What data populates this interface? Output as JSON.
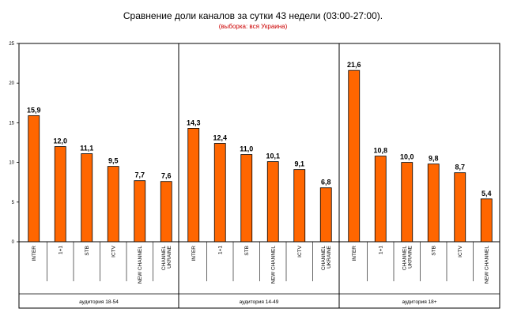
{
  "chart_data": {
    "type": "bar",
    "title": "Сравнение доли каналов за сутки 43 недели (03:00-27:00).",
    "subtitle": "(выборка: вся Украина)",
    "ylim": [
      0,
      25
    ],
    "yticks": [
      0,
      5,
      10,
      15,
      20,
      25
    ],
    "grid": false,
    "bar_color": "#ff6600",
    "groups": [
      {
        "name": "аудитория 18-54",
        "categories": [
          [
            "INTER"
          ],
          [
            "1+1"
          ],
          [
            "STB"
          ],
          [
            "ICTV"
          ],
          [
            "NEW CHANNEL"
          ],
          [
            "CHANNEL",
            "UKRAINE"
          ]
        ],
        "values": [
          15.9,
          12.0,
          11.1,
          9.5,
          7.7,
          7.6
        ],
        "value_labels": [
          "15,9",
          "12,0",
          "11,1",
          "9,5",
          "7,7",
          "7,6"
        ]
      },
      {
        "name": "аудитория 14-49",
        "categories": [
          [
            "INTER"
          ],
          [
            "1+1"
          ],
          [
            "STB"
          ],
          [
            "NEW CHANNEL"
          ],
          [
            "ICTV"
          ],
          [
            "CHANNEL",
            "UKRAINE"
          ]
        ],
        "values": [
          14.3,
          12.4,
          11.0,
          10.1,
          9.1,
          6.8
        ],
        "value_labels": [
          "14,3",
          "12,4",
          "11,0",
          "10,1",
          "9,1",
          "6,8"
        ]
      },
      {
        "name": "аудитория 18+",
        "categories": [
          [
            "INTER"
          ],
          [
            "1+1"
          ],
          [
            "CHANNEL",
            "UKRAINE"
          ],
          [
            "STB"
          ],
          [
            "ICTV"
          ],
          [
            "NEW CHANNEL"
          ]
        ],
        "values": [
          21.6,
          10.8,
          10.0,
          9.8,
          8.7,
          5.4
        ],
        "value_labels": [
          "21,6",
          "10,8",
          "10,0",
          "9,8",
          "8,7",
          "5,4"
        ]
      }
    ]
  }
}
